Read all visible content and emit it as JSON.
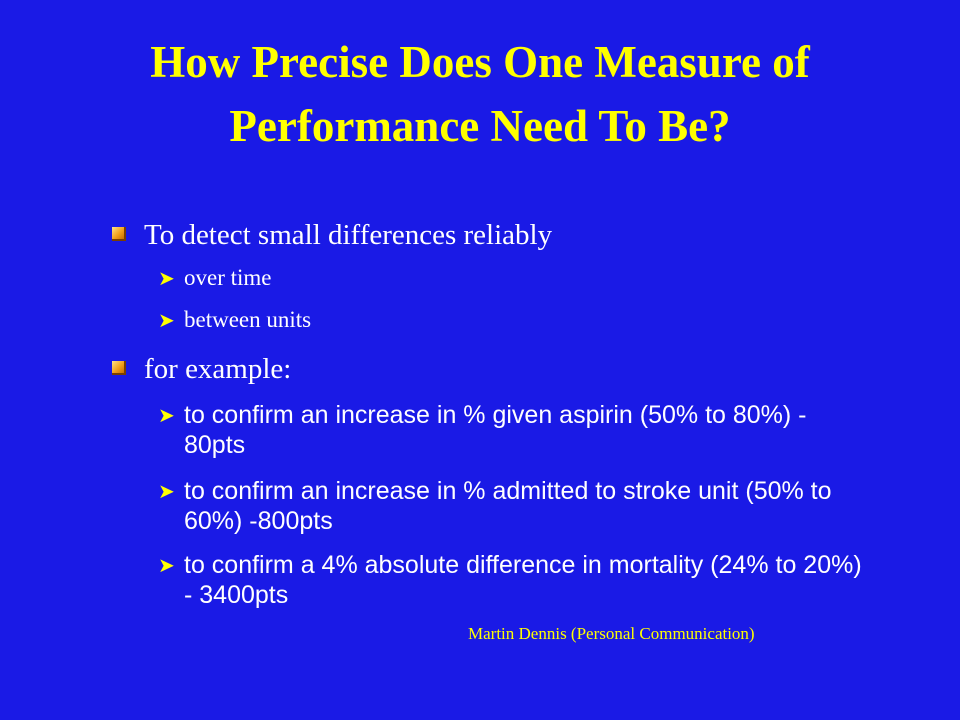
{
  "slide": {
    "title_line1": "How Precise Does One Measure of",
    "title_line2": "Performance Need To Be?",
    "bullets": [
      {
        "text": "To detect small differences reliably",
        "sub": [
          "over time",
          "between units"
        ]
      },
      {
        "text": "for example:",
        "sub": [
          "to confirm an increase in % given aspirin (50% to 80%) - 80pts",
          "to confirm an increase in % admitted to stroke unit (50% to 60%) -800pts",
          "to confirm a 4% absolute difference in mortality (24% to 20%) - 3400pts"
        ]
      }
    ],
    "credit": "Martin Dennis (Personal Communication)",
    "level1_marker_icon": "square-bullet-icon",
    "level2_marker_icon": "arrowhead-bullet-icon",
    "colors": {
      "background": "#1a1ae6",
      "title": "#ffff00",
      "body_text": "#ffffff",
      "arrow_bullet": "#ffff00",
      "square_bullet": "#f3a21c",
      "credit": "#ffff00"
    }
  }
}
